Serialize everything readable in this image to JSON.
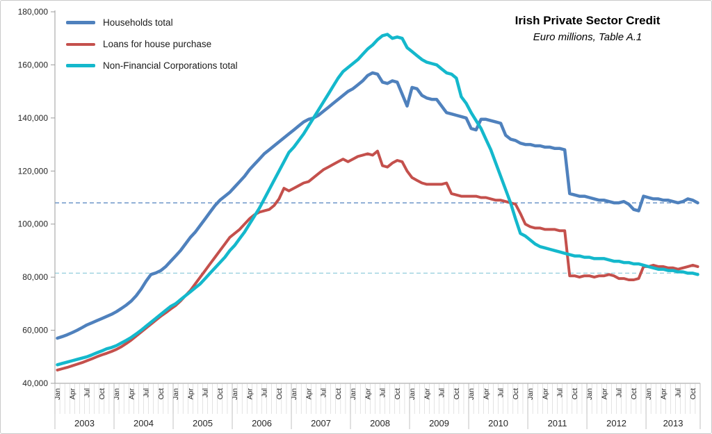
{
  "chart_data": {
    "type": "line",
    "title": "Irish Private Sector Credit",
    "subtitle": "Euro millions, Table A.1",
    "xlabel": "",
    "ylabel": "",
    "ylim": [
      40000,
      180000
    ],
    "ytick_step": 20000,
    "ytick_labels": [
      "40,000",
      "60,000",
      "80,000",
      "100,000",
      "120,000",
      "140,000",
      "160,000",
      "180,000"
    ],
    "years": [
      "2003",
      "2004",
      "2005",
      "2006",
      "2007",
      "2008",
      "2009",
      "2010",
      "2011",
      "2012",
      "2013"
    ],
    "month_tick_labels": [
      "Jan",
      "Apr",
      "Jul",
      "Oct"
    ],
    "label_every_n_months": 3,
    "n_months": 131,
    "x_start": "Jan 2003",
    "x_end": "Nov 2013",
    "grid": "off",
    "legend_position": "top-left",
    "axis_color": "#9b9b9b",
    "text_color": "#262626",
    "reference_lines": [
      {
        "value": 108000,
        "color": "#4f81bd",
        "style": "dashed"
      },
      {
        "value": 81500,
        "color": "#92cddc",
        "style": "dashed"
      }
    ],
    "series": [
      {
        "name": "Households total",
        "color": "#4f81bd",
        "stroke_width": 4.5,
        "values": [
          57000,
          57600,
          58300,
          59100,
          60000,
          61000,
          62000,
          62800,
          63600,
          64400,
          65200,
          66000,
          67000,
          68200,
          69500,
          71000,
          73000,
          75500,
          78500,
          81000,
          81600,
          82500,
          84000,
          86000,
          88000,
          90000,
          92500,
          95000,
          97000,
          99500,
          102000,
          104500,
          107000,
          109000,
          110500,
          112000,
          114000,
          116000,
          118000,
          120500,
          122500,
          124500,
          126500,
          128000,
          129500,
          131000,
          132500,
          134000,
          135500,
          137000,
          138500,
          139500,
          140000,
          141000,
          142500,
          144000,
          145500,
          147000,
          148500,
          150000,
          151000,
          152500,
          154000,
          156000,
          157000,
          156500,
          153500,
          153000,
          154000,
          153500,
          149000,
          144500,
          151500,
          151000,
          148500,
          147500,
          147000,
          147000,
          144500,
          142000,
          141500,
          141000,
          140500,
          140000,
          136000,
          135500,
          139500,
          139500,
          139000,
          138500,
          138000,
          133500,
          132000,
          131500,
          130500,
          130000,
          130000,
          129500,
          129500,
          129000,
          129000,
          128500,
          128500,
          128000,
          111500,
          111000,
          110500,
          110500,
          110000,
          109500,
          109000,
          109000,
          108500,
          108000,
          108000,
          108500,
          107500,
          105500,
          105000,
          110500,
          110000,
          109500,
          109500,
          109000,
          109000,
          108500,
          108000,
          108500,
          109500,
          109000,
          108000
        ]
      },
      {
        "name": "Loans for house purchase",
        "color": "#c4504c",
        "stroke_width": 4,
        "values": [
          45000,
          45500,
          46000,
          46600,
          47200,
          47800,
          48500,
          49200,
          50000,
          50700,
          51300,
          52000,
          52800,
          53800,
          55000,
          56300,
          57800,
          59300,
          60800,
          62300,
          63800,
          65300,
          66600,
          68000,
          69300,
          71000,
          73000,
          75000,
          77500,
          80000,
          82500,
          85000,
          87500,
          90000,
          92500,
          95000,
          96500,
          98000,
          100000,
          102000,
          103500,
          104500,
          105000,
          105500,
          107000,
          109500,
          113500,
          112500,
          113500,
          114500,
          115500,
          116000,
          117500,
          119000,
          120500,
          121500,
          122500,
          123500,
          124500,
          123500,
          124500,
          125500,
          126000,
          126500,
          126000,
          127500,
          122000,
          121500,
          123000,
          124000,
          123500,
          120000,
          117500,
          116500,
          115500,
          115000,
          115000,
          115000,
          115000,
          115500,
          111500,
          111000,
          110500,
          110500,
          110500,
          110500,
          110000,
          110000,
          109500,
          109000,
          109000,
          108500,
          108000,
          107500,
          104000,
          100000,
          99000,
          98500,
          98500,
          98000,
          98000,
          98000,
          97500,
          97500,
          80500,
          80500,
          80000,
          80500,
          80500,
          80000,
          80500,
          80500,
          81000,
          80500,
          79500,
          79500,
          79000,
          79000,
          79500,
          84000,
          84000,
          84500,
          84000,
          84000,
          83500,
          83500,
          83000,
          83500,
          84000,
          84500,
          84000
        ]
      },
      {
        "name": "Non-Financial Corporations total",
        "color": "#14b8cc",
        "stroke_width": 4.5,
        "values": [
          47000,
          47500,
          48000,
          48500,
          49000,
          49500,
          50000,
          50700,
          51500,
          52200,
          53000,
          53500,
          54200,
          55200,
          56200,
          57300,
          58600,
          60000,
          61500,
          63000,
          64500,
          66000,
          67500,
          69000,
          70000,
          71500,
          73000,
          74500,
          76000,
          77500,
          79500,
          81500,
          83500,
          85500,
          87500,
          90000,
          92000,
          94500,
          97000,
          100000,
          103000,
          106000,
          109500,
          113000,
          116500,
          120000,
          123500,
          127000,
          129000,
          131500,
          134000,
          137000,
          140000,
          143000,
          146000,
          149000,
          152000,
          155000,
          157500,
          159000,
          160500,
          162000,
          164000,
          166000,
          167500,
          169500,
          171000,
          171500,
          170000,
          170500,
          170000,
          166500,
          165000,
          163500,
          162000,
          161000,
          160500,
          160000,
          158500,
          157000,
          156500,
          155000,
          148000,
          145500,
          142000,
          139000,
          136000,
          132000,
          128000,
          123000,
          118000,
          113000,
          108000,
          102000,
          96500,
          95500,
          94000,
          92500,
          91500,
          91000,
          90500,
          90000,
          89500,
          89000,
          88500,
          88000,
          88000,
          87500,
          87500,
          87000,
          87000,
          87000,
          86500,
          86000,
          86000,
          85500,
          85500,
          85000,
          85000,
          84500,
          84000,
          83500,
          83000,
          83000,
          82500,
          82500,
          82000,
          82000,
          81500,
          81500,
          81000
        ]
      }
    ]
  }
}
